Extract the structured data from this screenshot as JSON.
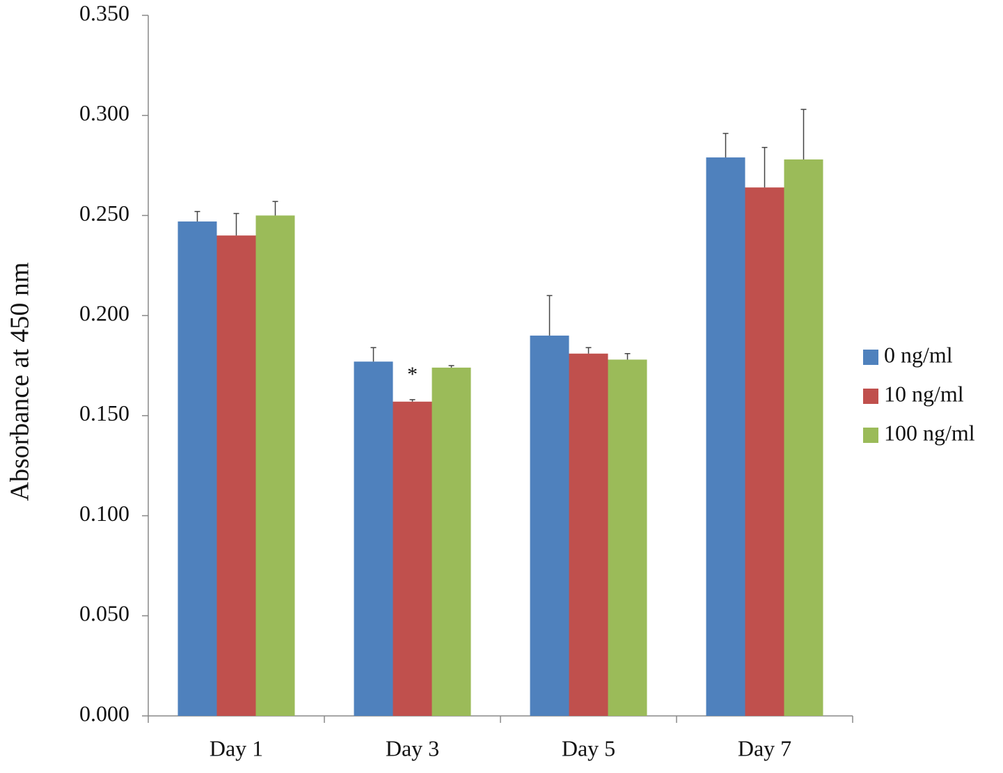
{
  "chart_data": {
    "type": "bar",
    "y_label": "Absorbance at 450 nm",
    "categories": [
      "Day 1",
      "Day 3",
      "Day 5",
      "Day 7"
    ],
    "series": [
      {
        "name": "0 ng/ml",
        "color": "#4f81bd",
        "values": [
          0.247,
          0.177,
          0.19,
          0.279
        ],
        "errors": [
          0.005,
          0.007,
          0.02,
          0.012
        ]
      },
      {
        "name": "10 ng/ml",
        "color": "#c0504d",
        "values": [
          0.24,
          0.157,
          0.181,
          0.264
        ],
        "errors": [
          0.011,
          0.001,
          0.003,
          0.02
        ]
      },
      {
        "name": "100 ng/ml",
        "color": "#9bbb59",
        "values": [
          0.25,
          0.174,
          0.178,
          0.278
        ],
        "errors": [
          0.007,
          0.001,
          0.003,
          0.025
        ]
      }
    ],
    "annotations": [
      {
        "text": "*",
        "category": "Day 3",
        "series": "10 ng/ml"
      }
    ],
    "ylim": [
      0,
      0.35
    ],
    "yticks": [
      {
        "value": 0,
        "label": "0.000"
      },
      {
        "value": 0.05,
        "label": "0.050"
      },
      {
        "value": 0.1,
        "label": "0.100"
      },
      {
        "value": 0.15,
        "label": "0.150"
      },
      {
        "value": 0.2,
        "label": "0.200"
      },
      {
        "value": 0.25,
        "label": "0.250"
      },
      {
        "value": 0.3,
        "label": "0.300"
      },
      {
        "value": 0.35,
        "label": "0.350"
      }
    ],
    "grid": false,
    "legend": "right"
  }
}
